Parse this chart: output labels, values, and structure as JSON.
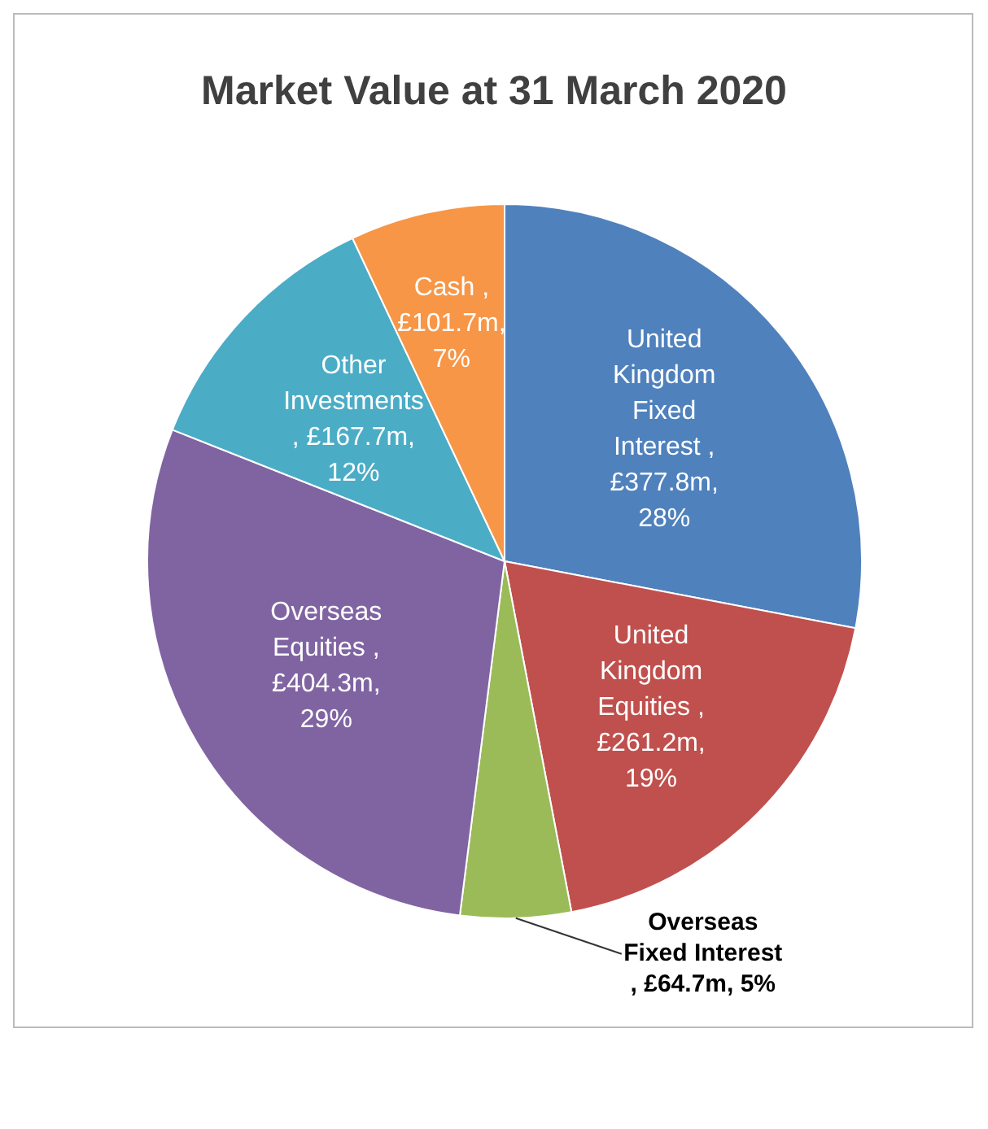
{
  "chart_data": {
    "type": "pie",
    "title": "Market Value at 31 March 2020",
    "categories": [
      "United Kingdom Fixed Interest",
      "United Kingdom Equities",
      "Overseas Fixed Interest",
      "Overseas Equities",
      "Other Investments",
      "Cash"
    ],
    "values": [
      28,
      19,
      5,
      29,
      12,
      7
    ],
    "colors": [
      "#4f81bd",
      "#c0504d",
      "#9bbb59",
      "#8064a2",
      "#4bacc6",
      "#f79646"
    ],
    "value_labels": [
      ", £377.8m, 28%",
      ", £261.2m, 19%",
      ", £64.7m, 5%",
      ", £404.3m, 29%",
      ", £167.7m, 12%",
      ", £101.7m, 7%"
    ],
    "legend": false
  }
}
